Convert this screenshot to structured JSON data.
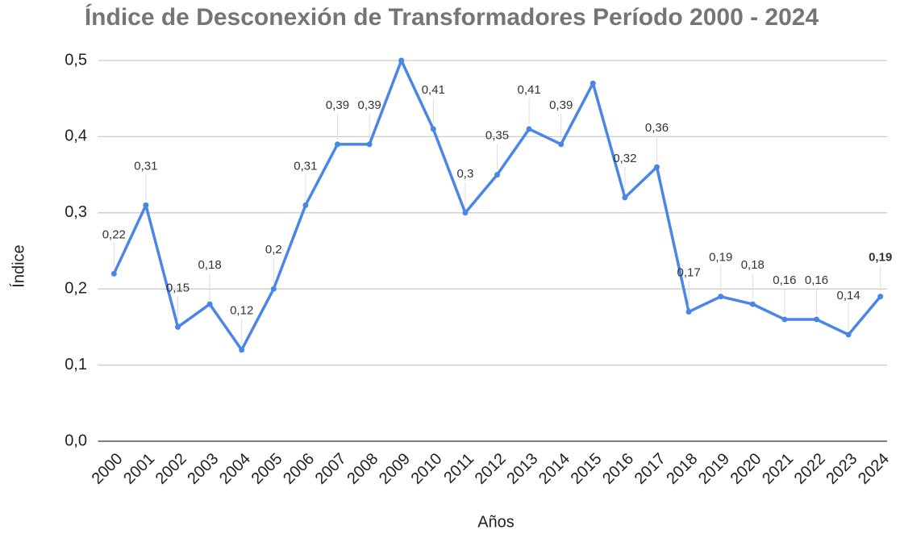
{
  "chart_data": {
    "type": "line",
    "title": "Índice de Desconexión de Transformadores Período 2000 - 2024",
    "x_label": "Años",
    "y_label": "Índice",
    "categories": [
      "2000",
      "2001",
      "2002",
      "2003",
      "2004",
      "2005",
      "2006",
      "2007",
      "2008",
      "2009",
      "2010",
      "2011",
      "2012",
      "2013",
      "2014",
      "2015",
      "2016",
      "2017",
      "2018",
      "2019",
      "2020",
      "2021",
      "2022",
      "2023",
      "2024"
    ],
    "series": [
      {
        "name": "Índice",
        "color": "#4a86e8",
        "values": [
          0.22,
          0.31,
          0.15,
          0.18,
          0.12,
          0.2,
          0.31,
          0.39,
          0.39,
          0.5,
          0.41,
          0.3,
          0.35,
          0.41,
          0.39,
          0.47,
          0.32,
          0.36,
          0.17,
          0.19,
          0.18,
          0.16,
          0.16,
          0.14,
          0.19
        ],
        "value_labels": [
          "0,22",
          "0,31",
          "0,15",
          "0,18",
          "0,12",
          "0,2",
          "0,31",
          "0,39",
          "0,39",
          null,
          "0,41",
          "0,3",
          "0,35",
          "0,41",
          "0,39",
          null,
          "0,32",
          "0,36",
          "0,17",
          "0,19",
          "0,18",
          "0,16",
          "0,16",
          "0,14",
          "0,19"
        ]
      }
    ],
    "ylim": [
      0,
      0.5
    ],
    "yticks": [
      {
        "value": 0,
        "label": "0,0"
      },
      {
        "value": 0.1,
        "label": "0,1"
      },
      {
        "value": 0.2,
        "label": "0,2"
      },
      {
        "value": 0.3,
        "label": "0,3"
      },
      {
        "value": 0.4,
        "label": "0,4"
      },
      {
        "value": 0.5,
        "label": "0,5"
      }
    ],
    "grid": true
  }
}
